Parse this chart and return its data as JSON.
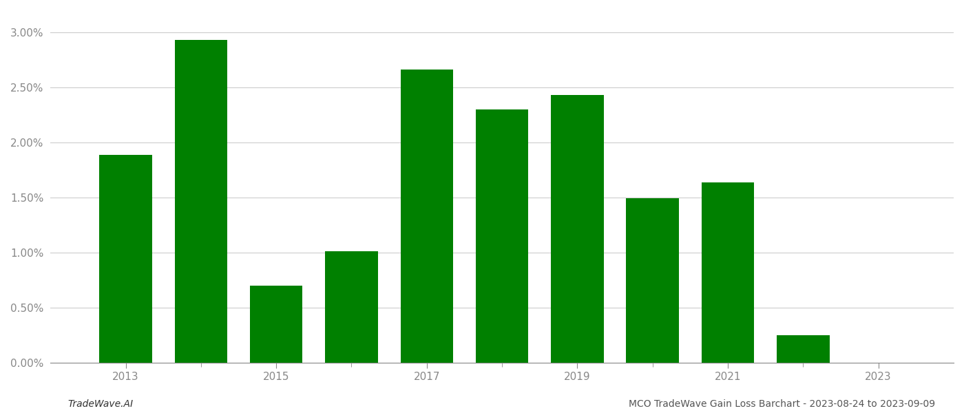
{
  "years": [
    2013,
    2014,
    2015,
    2016,
    2017,
    2018,
    2019,
    2020,
    2021,
    2022,
    2023
  ],
  "values": [
    0.01889,
    0.0293,
    0.007,
    0.0101,
    0.0266,
    0.023,
    0.0243,
    0.0149,
    0.0164,
    0.0025,
    0.0
  ],
  "bar_color": "#008000",
  "background_color": "#ffffff",
  "ylabel_fontsize": 11,
  "xlabel_fontsize": 11,
  "tick_color": "#888888",
  "grid_color": "#cccccc",
  "footer_left": "TradeWave.AI",
  "footer_right": "MCO TradeWave Gain Loss Barchart - 2023-08-24 to 2023-09-09",
  "ylim": [
    0.0,
    0.032
  ],
  "yticks": [
    0.0,
    0.005,
    0.01,
    0.015,
    0.02,
    0.025,
    0.03
  ],
  "xticks_labeled": [
    2013,
    2015,
    2017,
    2019,
    2021,
    2023
  ],
  "bar_width": 0.7,
  "xlim": [
    2012.0,
    2024.0
  ]
}
